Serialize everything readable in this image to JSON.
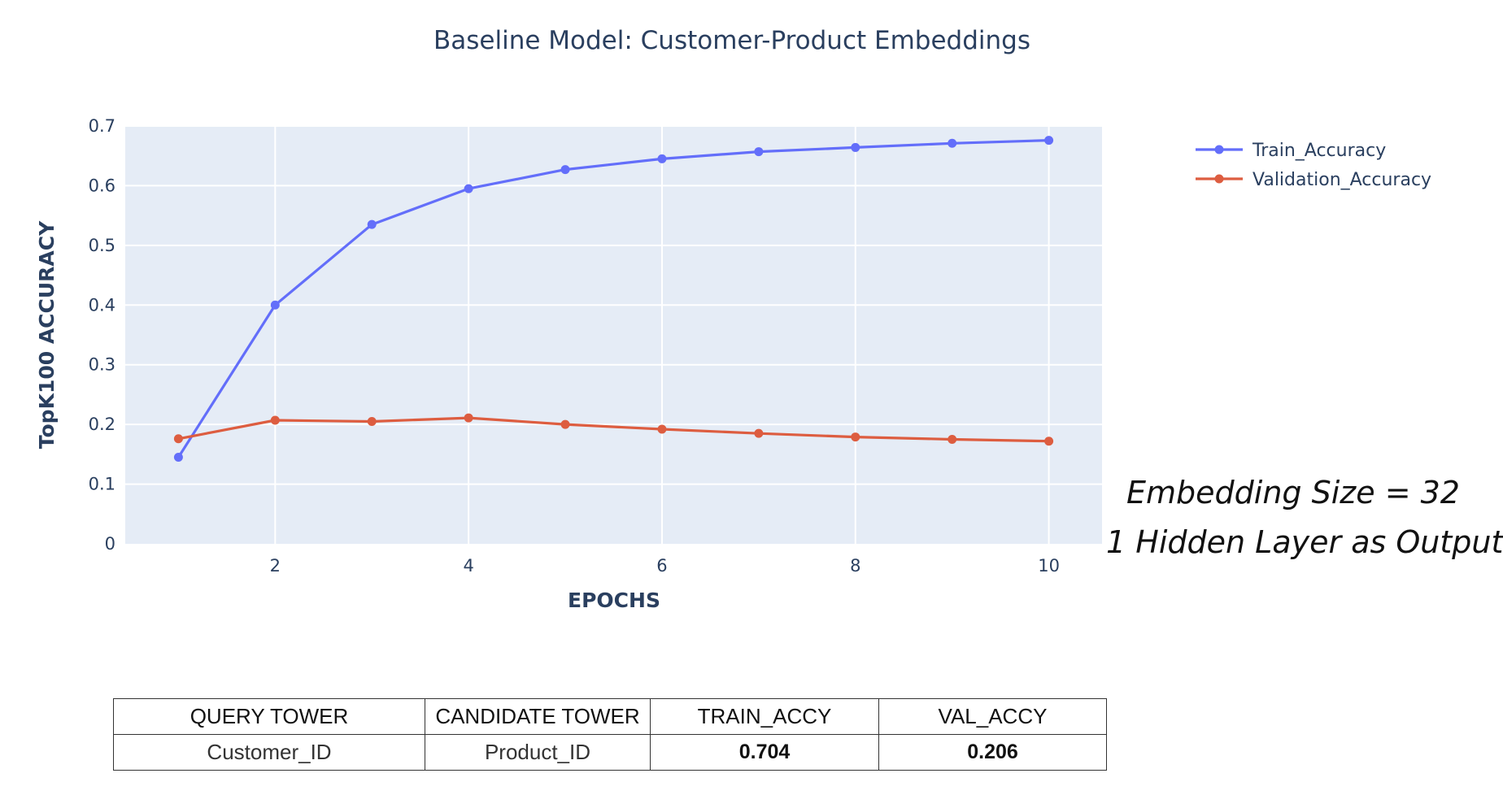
{
  "chart_data": {
    "type": "line",
    "title": "Baseline Model: Customer-Product Embeddings",
    "xlabel": "EPOCHS",
    "ylabel": "TopK100 ACCURACY",
    "x": [
      1,
      2,
      3,
      4,
      5,
      6,
      7,
      8,
      9,
      10
    ],
    "xticks": [
      2,
      4,
      6,
      8,
      10
    ],
    "yticks": [
      0,
      0.1,
      0.2,
      0.3,
      0.4,
      0.5,
      0.6,
      0.7
    ],
    "ytick_labels": [
      "0",
      "0.1",
      "0.2",
      "0.3",
      "0.4",
      "0.5",
      "0.6",
      "0.7"
    ],
    "xlim": [
      0.45,
      10.55
    ],
    "ylim": [
      0,
      0.7
    ],
    "grid": true,
    "legend_position": "top-right",
    "series": [
      {
        "name": "Train_Accuracy",
        "color": "#636efa",
        "values": [
          0.145,
          0.4,
          0.535,
          0.595,
          0.627,
          0.645,
          0.657,
          0.664,
          0.671,
          0.676
        ]
      },
      {
        "name": "Validation_Accuracy",
        "color": "#dd5d40",
        "values": [
          0.176,
          0.207,
          0.205,
          0.211,
          0.2,
          0.192,
          0.185,
          0.179,
          0.175,
          0.172
        ]
      }
    ]
  },
  "annotations": [
    "Embedding Size = 32",
    "1 Hidden Layer as Output"
  ],
  "table": {
    "headers": [
      "QUERY TOWER",
      "CANDIDATE TOWER",
      "TRAIN_ACCY",
      "VAL_ACCY"
    ],
    "rows": [
      [
        "Customer_ID",
        "Product_ID",
        "0.704",
        "0.206"
      ]
    ]
  }
}
